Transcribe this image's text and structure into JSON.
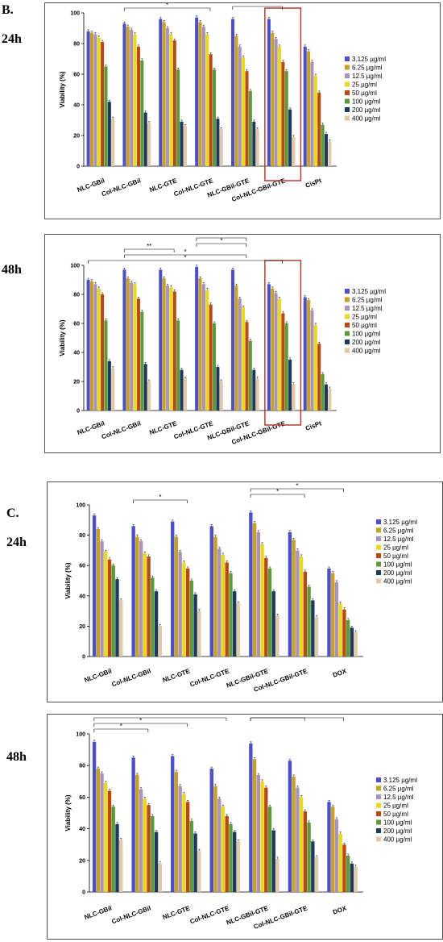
{
  "labels": {
    "section_b": "B.",
    "section_c": "C.",
    "time_24h": "24h",
    "time_48h": "48h"
  },
  "series_colors": [
    "#4b50c8",
    "#c8a028",
    "#a894b8",
    "#e8d820",
    "#b84a10",
    "#5f9a3a",
    "#1d3a5e",
    "#e0c8a8"
  ],
  "chart_data": [
    {
      "id": "b24",
      "type": "bar",
      "ylabel": "Viability (%)",
      "ylim": [
        0,
        100
      ],
      "yticks": [
        0,
        20,
        40,
        60,
        80,
        100
      ],
      "categories": [
        "NLC-GBil",
        "Col-NLC-GBil",
        "NLC-GTE",
        "Col-NLC-GTE",
        "NLC-GBil-GTE",
        "Col-NLC-GBil-GTE",
        "CisPt"
      ],
      "series": [
        {
          "name": "3.125 µg/ml",
          "values": [
            88,
            93,
            96,
            97,
            96,
            96,
            78
          ]
        },
        {
          "name": "6.25 µg/ml",
          "values": [
            87,
            91,
            94,
            94,
            85,
            87,
            75
          ]
        },
        {
          "name": "12.5 µg/ml",
          "values": [
            86,
            89,
            90,
            91,
            78,
            83,
            68
          ]
        },
        {
          "name": "25 µg/ml",
          "values": [
            84,
            86,
            86,
            86,
            71,
            78,
            59
          ]
        },
        {
          "name": "50 µg/ml",
          "values": [
            81,
            78,
            82,
            73,
            62,
            68,
            48
          ]
        },
        {
          "name": "100 µg/ml",
          "values": [
            65,
            69,
            63,
            63,
            49,
            62,
            27
          ]
        },
        {
          "name": "200 µg/ml",
          "values": [
            42,
            35,
            29,
            31,
            29,
            37,
            21
          ]
        },
        {
          "name": "400 µg/ml",
          "values": [
            31,
            28,
            26,
            24,
            24,
            19,
            16
          ]
        }
      ],
      "legend_position": "right",
      "significance": [
        {
          "from": 1,
          "to": 3,
          "label": "*"
        },
        {
          "from": 4,
          "to": 5,
          "label": "*"
        }
      ],
      "highlight_category": 5
    },
    {
      "id": "b48",
      "type": "bar",
      "ylabel": "Viability (%)",
      "ylim": [
        0,
        100
      ],
      "yticks": [
        0,
        20,
        40,
        60,
        80,
        100
      ],
      "categories": [
        "NLC-GBil",
        "Col-NLC-GBil",
        "NLC-GTE",
        "Col-NLC-GTE",
        "NLC-GBil-GTE",
        "Col-NLC-GBil-GTE",
        "CisPt"
      ],
      "series": [
        {
          "name": "3.125 µg/ml",
          "values": [
            90,
            97,
            97,
            99,
            97,
            87,
            78
          ]
        },
        {
          "name": "6.25 µg/ml",
          "values": [
            89,
            91,
            91,
            91,
            86,
            84,
            76
          ]
        },
        {
          "name": "12.5 µg/ml",
          "values": [
            87,
            88,
            86,
            87,
            77,
            81,
            69
          ]
        },
        {
          "name": "25 µg/ml",
          "values": [
            84,
            87,
            85,
            83,
            71,
            77,
            59
          ]
        },
        {
          "name": "50 µg/ml",
          "values": [
            80,
            77,
            82,
            73,
            61,
            67,
            46
          ]
        },
        {
          "name": "100 µg/ml",
          "values": [
            62,
            68,
            62,
            60,
            48,
            60,
            25
          ]
        },
        {
          "name": "200 µg/ml",
          "values": [
            34,
            32,
            28,
            30,
            28,
            35,
            18
          ]
        },
        {
          "name": "400 µg/ml",
          "values": [
            29,
            20,
            22,
            20,
            22,
            18,
            15
          ]
        }
      ],
      "legend_position": "right",
      "significance": [
        {
          "from": 0,
          "to": 5,
          "label": "*"
        },
        {
          "from": 1,
          "to": 4,
          "label": "*"
        },
        {
          "from": 1,
          "to": 2,
          "label": "**"
        },
        {
          "from": 3,
          "to": 4,
          "label": "*"
        },
        {
          "from": 3,
          "to": 4,
          "label": "*"
        }
      ],
      "highlight_category": 5
    },
    {
      "id": "c24",
      "type": "bar",
      "ylabel": "Viability (%)",
      "ylim": [
        0,
        100
      ],
      "yticks": [
        0,
        20,
        40,
        60,
        80,
        100
      ],
      "categories": [
        "NLC-GBil",
        "Col-NLC-GBil",
        "NLC-GTE",
        "Col-NLC-GTE",
        "NLC-GBil-GTE",
        "Col-NLC-GBil-GTE",
        "DOX"
      ],
      "series": [
        {
          "name": "3.125 µg/ml",
          "values": [
            93,
            86,
            89,
            86,
            95,
            82,
            58
          ]
        },
        {
          "name": "6.25 µg/ml",
          "values": [
            84,
            79,
            79,
            79,
            88,
            77,
            55
          ]
        },
        {
          "name": "12.5 µg/ml",
          "values": [
            76,
            76,
            69,
            71,
            82,
            70,
            49
          ]
        },
        {
          "name": "25 µg/ml",
          "values": [
            69,
            68,
            62,
            67,
            74,
            66,
            35
          ]
        },
        {
          "name": "50 µg/ml",
          "values": [
            64,
            66,
            58,
            62,
            65,
            56,
            31
          ]
        },
        {
          "name": "100 µg/ml",
          "values": [
            60,
            52,
            50,
            55,
            58,
            46,
            24
          ]
        },
        {
          "name": "200 µg/ml",
          "values": [
            51,
            43,
            41,
            43,
            43,
            37,
            19
          ]
        },
        {
          "name": "400 µg/ml",
          "values": [
            37,
            20,
            30,
            35,
            27,
            26,
            16
          ]
        }
      ],
      "legend_position": "right",
      "significance": [
        {
          "from": 1,
          "to": 2,
          "label": "*"
        },
        {
          "from": 4,
          "to": 5,
          "label": "*"
        },
        {
          "from": 4,
          "to": 6,
          "label": "*"
        }
      ],
      "highlight_category": null
    },
    {
      "id": "c48",
      "type": "bar",
      "ylabel": "Viability (%)",
      "ylim": [
        0,
        100
      ],
      "yticks": [
        0,
        20,
        40,
        60,
        80,
        100
      ],
      "categories": [
        "NLC-GBil",
        "Col-NLC-GBil",
        "NLC-GTE",
        "Col-NLC-GTE",
        "NLC-GBil-GTE",
        "Col-NLC-GBil-GTE",
        "DOX"
      ],
      "series": [
        {
          "name": "3.125 µg/ml",
          "values": [
            95,
            85,
            86,
            78,
            94,
            83,
            57
          ]
        },
        {
          "name": "6.25 µg/ml",
          "values": [
            78,
            74,
            76,
            67,
            84,
            73,
            54
          ]
        },
        {
          "name": "12.5 µg/ml",
          "values": [
            75,
            65,
            67,
            59,
            74,
            66,
            46
          ]
        },
        {
          "name": "25 µg/ml",
          "values": [
            69,
            59,
            62,
            54,
            70,
            60,
            37
          ]
        },
        {
          "name": "50 µg/ml",
          "values": [
            64,
            55,
            57,
            48,
            66,
            51,
            30
          ]
        },
        {
          "name": "100 µg/ml",
          "values": [
            54,
            48,
            45,
            43,
            54,
            44,
            23
          ]
        },
        {
          "name": "200 µg/ml",
          "values": [
            43,
            38,
            37,
            38,
            39,
            32,
            18
          ]
        },
        {
          "name": "400 µg/ml",
          "values": [
            33,
            18,
            26,
            32,
            21,
            22,
            16
          ]
        }
      ],
      "legend_position": "right",
      "significance": [
        {
          "from": 0,
          "to": 1,
          "label": "*"
        },
        {
          "from": 0,
          "to": 2,
          "label": "*"
        },
        {
          "from": 0,
          "to": 3,
          "label": "**"
        },
        {
          "from": 4,
          "to": 5,
          "label": "*"
        },
        {
          "from": 4,
          "to": 6,
          "label": "*"
        }
      ],
      "highlight_category": null
    }
  ]
}
